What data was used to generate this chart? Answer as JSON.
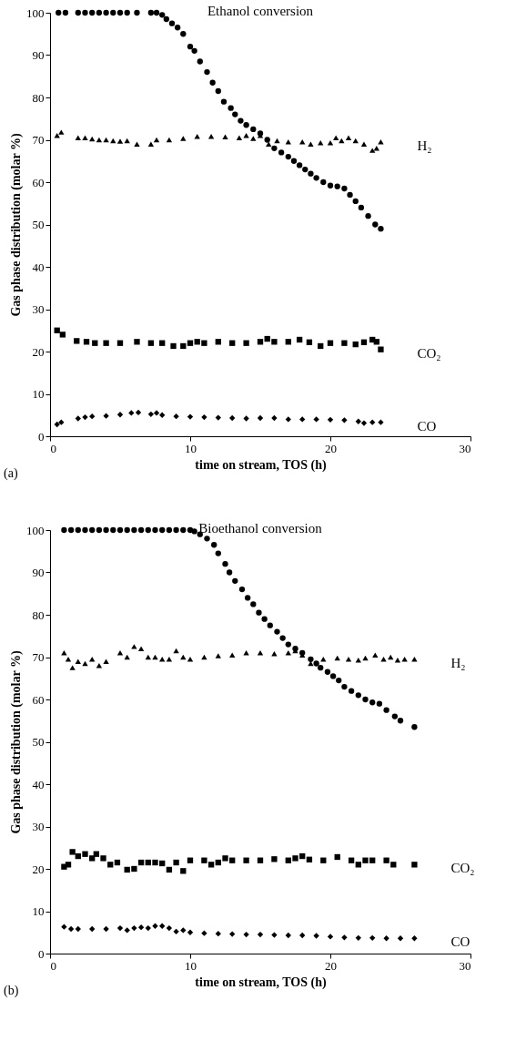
{
  "chart_data": [
    {
      "type": "scatter",
      "title": "Ethanol conversion",
      "xlabel": "time on stream, TOS (h)",
      "ylabel": "Gas phase distribution (molar %)",
      "annotations": [
        "(a)"
      ],
      "xlim": [
        0,
        30
      ],
      "xticks": [
        0,
        10,
        20,
        30
      ],
      "ylim": [
        0,
        100
      ],
      "yticks": [
        0,
        10,
        20,
        30,
        40,
        50,
        60,
        70,
        80,
        90,
        100
      ],
      "series": [
        {
          "color": "#000000",
          "marker": "circle",
          "x": [
            0.6,
            1.1,
            2,
            2.5,
            3,
            3.5,
            4,
            4.5,
            5,
            5.5,
            6.2,
            7.2,
            7.6,
            8,
            8.3,
            8.7,
            9.1,
            9.5,
            10,
            10.3,
            10.7,
            11.2,
            11.6,
            12,
            12.4,
            12.9,
            13.2,
            13.6,
            14,
            14.5,
            15,
            15.5,
            16,
            16.5,
            17,
            17.4,
            17.8,
            18.2,
            18.6,
            19,
            19.5,
            20,
            20.5,
            21,
            21.4,
            21.8,
            22.2,
            22.7,
            23.2,
            23.6
          ],
          "values": [
            100,
            100,
            100,
            100,
            100,
            100,
            100,
            100,
            100,
            100,
            100,
            100,
            100,
            99.5,
            98.5,
            97.5,
            96.5,
            95,
            92,
            91,
            88.5,
            86,
            83.5,
            81.5,
            79,
            77.5,
            76,
            74.5,
            73.5,
            72.5,
            71.5,
            70,
            68,
            67,
            66,
            65,
            64,
            63,
            62,
            61,
            60,
            59.2,
            59,
            58.5,
            57,
            55.5,
            54,
            52,
            50,
            49
          ]
        },
        {
          "name": "H₂",
          "color": "#000000",
          "marker": "triangle",
          "x": [
            0.5,
            0.8,
            2,
            2.5,
            3,
            3.5,
            4,
            4.5,
            5,
            5.5,
            6.2,
            7.2,
            7.6,
            8.5,
            9.5,
            10.5,
            11.5,
            12.5,
            13.5,
            14,
            14.5,
            15,
            15.6,
            16.2,
            17,
            18,
            18.6,
            19.3,
            20,
            20.4,
            20.8,
            21.3,
            21.8,
            22.4,
            23,
            23.3,
            23.6
          ],
          "values": [
            71,
            71.8,
            70.5,
            70.5,
            70.2,
            70,
            70,
            69.8,
            69.7,
            69.8,
            69,
            69,
            70,
            70,
            70.3,
            70.8,
            70.8,
            70.7,
            70.5,
            71,
            70.3,
            71,
            69,
            69.8,
            69.5,
            69.5,
            69,
            69.3,
            69.3,
            70.5,
            69.8,
            70.5,
            69.8,
            69,
            67.5,
            68,
            69.5
          ]
        },
        {
          "name": "CO₂",
          "color": "#000000",
          "marker": "square",
          "x": [
            0.5,
            0.9,
            1.9,
            2.6,
            3.2,
            4,
            5,
            6.2,
            7.2,
            8,
            8.8,
            9.5,
            10,
            10.5,
            11,
            12,
            13,
            14,
            15,
            15.5,
            16,
            17,
            17.8,
            18.5,
            19.3,
            20,
            21,
            21.8,
            22.4,
            23,
            23.3,
            23.6
          ],
          "values": [
            25,
            24,
            22.5,
            22.3,
            22,
            22,
            22,
            22.3,
            22,
            22,
            21.3,
            21.3,
            22,
            22.3,
            22,
            22.3,
            22,
            22,
            22.3,
            23,
            22.3,
            22.3,
            22.8,
            22.2,
            21.3,
            22,
            22,
            21.7,
            22.2,
            22.8,
            22.3,
            20.5
          ]
        },
        {
          "name": "CO",
          "color": "#000000",
          "marker": "diamond",
          "x": [
            0.5,
            0.8,
            2,
            2.5,
            3,
            4,
            5,
            5.8,
            6.3,
            7.2,
            7.6,
            8,
            9,
            10,
            11,
            12,
            13,
            14,
            15,
            16,
            17,
            18,
            19,
            20,
            21,
            22,
            22.4,
            23,
            23.6
          ],
          "values": [
            2.8,
            3.3,
            4.2,
            4.5,
            4.7,
            4.8,
            5.1,
            5.5,
            5.6,
            5.2,
            5.5,
            5,
            4.7,
            4.6,
            4.5,
            4.4,
            4.3,
            4.2,
            4.3,
            4.3,
            4,
            4,
            4,
            3.9,
            3.8,
            3.5,
            3.1,
            3.3,
            3.3
          ]
        }
      ]
    },
    {
      "type": "scatter",
      "title": "Bioethanol conversion",
      "xlabel": "time on stream, TOS (h)",
      "ylabel": "Gas phase distribution (molar %)",
      "annotations": [
        "(b)"
      ],
      "xlim": [
        0,
        30
      ],
      "xticks": [
        0,
        10,
        20,
        30
      ],
      "ylim": [
        0,
        100
      ],
      "yticks": [
        0,
        10,
        20,
        30,
        40,
        50,
        60,
        70,
        80,
        90,
        100
      ],
      "series": [
        {
          "color": "#000000",
          "marker": "circle",
          "x": [
            1,
            1.5,
            2,
            2.5,
            3,
            3.5,
            4,
            4.5,
            5,
            5.5,
            6,
            6.5,
            7,
            7.5,
            8,
            8.5,
            9,
            9.5,
            10,
            10.3,
            10.7,
            11.2,
            11.7,
            12,
            12.5,
            12.8,
            13.2,
            13.7,
            14.1,
            14.5,
            14.9,
            15.3,
            15.7,
            16.2,
            16.6,
            17,
            17.5,
            18,
            18.6,
            19,
            19.3,
            19.8,
            20.2,
            20.6,
            21,
            21.5,
            22,
            22.5,
            23,
            23.5,
            24,
            24.6,
            25,
            26
          ],
          "values": [
            100,
            100,
            100,
            100,
            100,
            100,
            100,
            100,
            100,
            100,
            100,
            100,
            100,
            100,
            100,
            100,
            100,
            100,
            100,
            99.7,
            99,
            98,
            96.5,
            94.5,
            92,
            90,
            88,
            86,
            84,
            82.5,
            80.5,
            79,
            77.5,
            76,
            74.5,
            73,
            72,
            71,
            69.5,
            68.5,
            67.5,
            66.5,
            65.5,
            64.5,
            63,
            62,
            61,
            60,
            59.3,
            59,
            57.5,
            56,
            55,
            53.5
          ]
        },
        {
          "name": "H₂",
          "color": "#000000",
          "marker": "triangle",
          "x": [
            1,
            1.3,
            1.6,
            2,
            2.5,
            3,
            3.5,
            4,
            5,
            5.5,
            6,
            6.5,
            7,
            7.5,
            8,
            8.5,
            9,
            9.5,
            10,
            11,
            12,
            13,
            14,
            15,
            16,
            17,
            17.5,
            18,
            18.6,
            19.5,
            20.5,
            21.3,
            22,
            22.5,
            23.2,
            23.8,
            24.3,
            24.8,
            25.3,
            26
          ],
          "values": [
            71,
            69.5,
            67.5,
            69,
            68.5,
            69.5,
            68,
            69,
            71,
            70,
            72.5,
            72,
            70,
            70,
            69.5,
            69.5,
            71.5,
            70,
            69.5,
            70,
            70.3,
            70.5,
            71,
            71,
            70.8,
            71,
            71.5,
            70.5,
            68.5,
            69.5,
            69.8,
            69.5,
            69.3,
            69.8,
            70.5,
            69.5,
            70,
            69.3,
            69.5,
            69.5
          ]
        },
        {
          "name": "CO₂",
          "color": "#000000",
          "marker": "square",
          "x": [
            1,
            1.3,
            1.6,
            2,
            2.5,
            3,
            3.3,
            3.8,
            4.3,
            4.8,
            5.5,
            6,
            6.5,
            7,
            7.5,
            8,
            8.5,
            9,
            9.5,
            10,
            11,
            11.5,
            12,
            12.5,
            13,
            14,
            15,
            16,
            17,
            17.5,
            18,
            18.5,
            19.5,
            20.5,
            21.5,
            22,
            22.5,
            23,
            24,
            24.5,
            26
          ],
          "values": [
            20.5,
            21,
            24,
            23,
            23.5,
            22.5,
            23.5,
            22.5,
            21,
            21.5,
            19.8,
            20,
            21.5,
            21.5,
            21.5,
            21.3,
            19.8,
            21.5,
            19.5,
            22,
            22,
            21,
            21.5,
            22.5,
            22,
            22,
            22,
            22.3,
            22,
            22.5,
            23,
            22.2,
            22,
            22.8,
            22,
            21,
            22,
            22,
            22,
            21,
            21
          ]
        },
        {
          "name": "CO",
          "color": "#000000",
          "marker": "diamond",
          "x": [
            1,
            1.5,
            2,
            3,
            4,
            5,
            5.5,
            6,
            6.5,
            7,
            7.5,
            8,
            8.5,
            9,
            9.5,
            10,
            11,
            12,
            13,
            14,
            15,
            16,
            17,
            18,
            19,
            20,
            21,
            22,
            23,
            24,
            25,
            26
          ],
          "values": [
            6.3,
            5.8,
            5.8,
            5.8,
            5.8,
            6,
            5.5,
            6,
            6.2,
            6,
            6.5,
            6.5,
            6,
            5.2,
            5.5,
            5,
            4.8,
            4.7,
            4.6,
            4.5,
            4.5,
            4.4,
            4.3,
            4.3,
            4.2,
            4,
            3.8,
            3.7,
            3.7,
            3.6,
            3.6,
            3.6
          ]
        }
      ]
    }
  ]
}
